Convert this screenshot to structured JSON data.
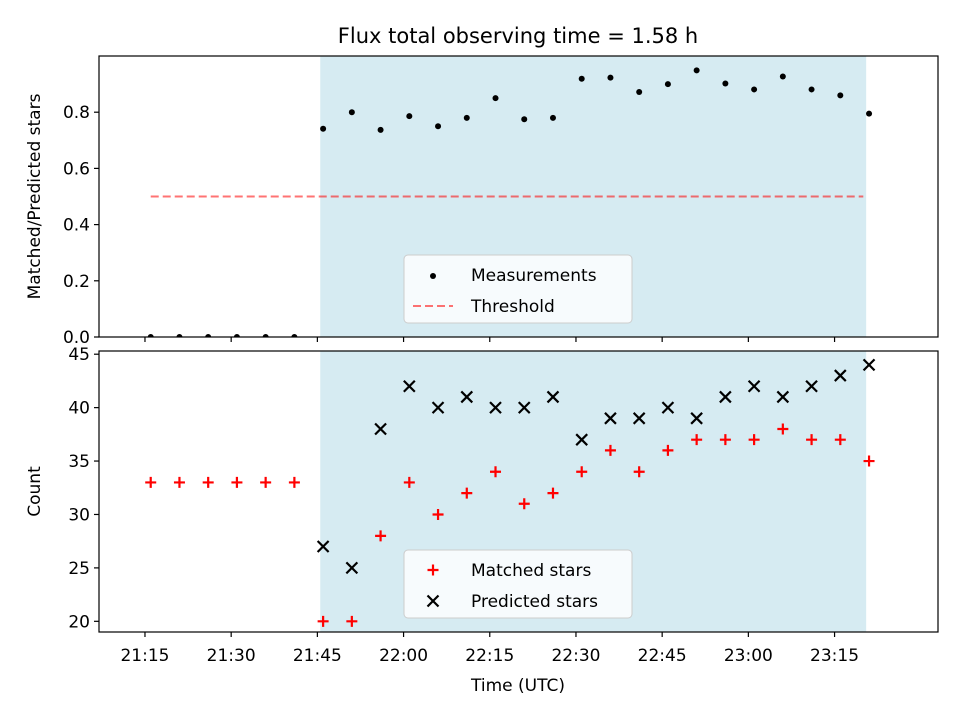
{
  "title": "Flux total observing time = 1.58 h",
  "colors": {
    "shade": "#add8e6",
    "measurement": "#000000",
    "threshold": "#ff0000",
    "matched": "#ff0000",
    "predicted": "#000000"
  },
  "chart_data": [
    {
      "type": "scatter",
      "ylabel": "Matched/Predicted stars",
      "ylim": [
        0,
        1.0
      ],
      "yticks": [
        0.0,
        0.2,
        0.4,
        0.6,
        0.8
      ],
      "ytick_labels": [
        "0.0",
        "0.2",
        "0.4",
        "0.6",
        "0.8"
      ],
      "shaded_span": [
        "21:45:30",
        "23:20:30"
      ],
      "legend_position": "lower center",
      "legend": [
        "Measurements",
        "Threshold"
      ],
      "threshold": {
        "name": "Threshold",
        "y": 0.5,
        "x_range": [
          "21:16",
          "23:20"
        ]
      },
      "series": [
        {
          "name": "Measurements",
          "x": [
            "21:16",
            "21:21",
            "21:26",
            "21:31",
            "21:36",
            "21:41",
            "21:46",
            "21:51",
            "21:56",
            "22:01",
            "22:06",
            "22:11",
            "22:16",
            "22:21",
            "22:26",
            "22:31",
            "22:36",
            "22:41",
            "22:46",
            "22:51",
            "22:56",
            "23:01",
            "23:06",
            "23:11",
            "23:16",
            "23:21"
          ],
          "y": [
            0.0,
            0.0,
            0.0,
            0.0,
            0.0,
            0.0,
            0.741,
            0.8,
            0.737,
            0.786,
            0.75,
            0.78,
            0.85,
            0.775,
            0.78,
            0.919,
            0.923,
            0.872,
            0.9,
            0.949,
            0.902,
            0.881,
            0.927,
            0.881,
            0.86,
            0.795
          ]
        }
      ]
    },
    {
      "type": "scatter",
      "ylabel": "Count",
      "xlabel": "Time (UTC)",
      "ylim": [
        19,
        45.3
      ],
      "yticks": [
        20,
        25,
        30,
        35,
        40,
        45
      ],
      "ytick_labels": [
        "20",
        "25",
        "30",
        "35",
        "40",
        "45"
      ],
      "xticks": [
        "21:15",
        "21:30",
        "21:45",
        "22:00",
        "22:15",
        "22:30",
        "22:45",
        "23:00",
        "23:15"
      ],
      "xlim": [
        "21:07",
        "23:33"
      ],
      "shaded_span": [
        "21:45:30",
        "23:20:30"
      ],
      "legend_position": "lower center",
      "legend": [
        "Matched stars",
        "Predicted stars"
      ],
      "series": [
        {
          "name": "Matched stars",
          "x": [
            "21:16",
            "21:21",
            "21:26",
            "21:31",
            "21:36",
            "21:41",
            "21:46",
            "21:51",
            "21:56",
            "22:01",
            "22:06",
            "22:11",
            "22:16",
            "22:21",
            "22:26",
            "22:31",
            "22:36",
            "22:41",
            "22:46",
            "22:51",
            "22:56",
            "23:01",
            "23:06",
            "23:11",
            "23:16",
            "23:21"
          ],
          "y": [
            33,
            33,
            33,
            33,
            33,
            33,
            20,
            20,
            28,
            33,
            30,
            32,
            34,
            31,
            32,
            34,
            36,
            34,
            36,
            37,
            37,
            37,
            38,
            37,
            37,
            35
          ]
        },
        {
          "name": "Predicted stars",
          "x": [
            "21:46",
            "21:51",
            "21:56",
            "22:01",
            "22:06",
            "22:11",
            "22:16",
            "22:21",
            "22:26",
            "22:31",
            "22:36",
            "22:41",
            "22:46",
            "22:51",
            "22:56",
            "23:01",
            "23:06",
            "23:11",
            "23:16",
            "23:21"
          ],
          "y": [
            27,
            25,
            38,
            42,
            40,
            41,
            40,
            40,
            41,
            37,
            39,
            39,
            40,
            39,
            41,
            42,
            41,
            42,
            43,
            44
          ]
        }
      ]
    }
  ]
}
